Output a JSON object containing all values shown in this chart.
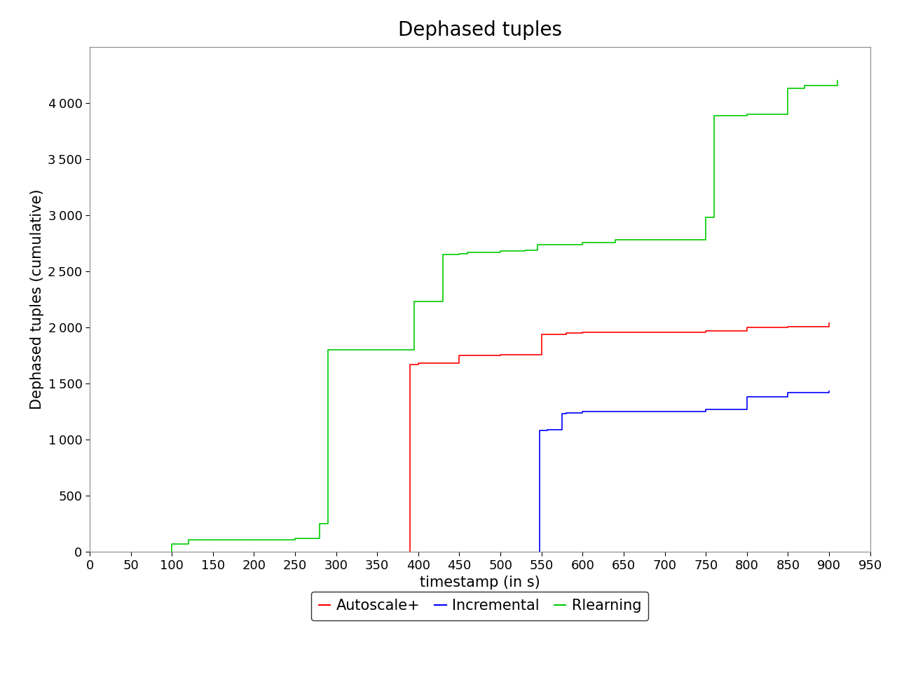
{
  "title": "Dephased tuples",
  "xlabel": "timestamp (in s)",
  "ylabel": "Dephased tuples (cumulative)",
  "xlim": [
    0,
    950
  ],
  "ylim": [
    0,
    4500
  ],
  "xticks": [
    0,
    50,
    100,
    150,
    200,
    250,
    300,
    350,
    400,
    450,
    500,
    550,
    600,
    650,
    700,
    750,
    800,
    850,
    900,
    950
  ],
  "yticks": [
    0,
    500,
    1000,
    1500,
    2000,
    2500,
    3000,
    3500,
    4000
  ],
  "series": [
    {
      "name": "Autoscale+",
      "color": "#ff0000",
      "x": [
        390,
        390,
        400,
        400,
        450,
        450,
        500,
        500,
        550,
        550,
        580,
        580,
        600,
        600,
        750,
        750,
        800,
        800,
        850,
        850,
        900,
        900
      ],
      "y": [
        0,
        1670,
        1670,
        1680,
        1680,
        1750,
        1750,
        1760,
        1760,
        1940,
        1940,
        1950,
        1950,
        1960,
        1960,
        1970,
        1970,
        2000,
        2000,
        2010,
        2010,
        2040
      ]
    },
    {
      "name": "Incremental",
      "color": "#0000ff",
      "x": [
        548,
        548,
        557,
        557,
        575,
        575,
        580,
        580,
        600,
        600,
        750,
        750,
        800,
        800,
        850,
        850,
        900,
        900
      ],
      "y": [
        0,
        1080,
        1080,
        1090,
        1090,
        1230,
        1230,
        1240,
        1240,
        1250,
        1250,
        1270,
        1270,
        1380,
        1380,
        1420,
        1420,
        1430
      ]
    },
    {
      "name": "Rlearning",
      "color": "#00cc00",
      "x": [
        100,
        100,
        120,
        120,
        250,
        250,
        280,
        280,
        290,
        290,
        395,
        395,
        430,
        430,
        450,
        450,
        460,
        460,
        500,
        500,
        530,
        530,
        545,
        545,
        600,
        600,
        640,
        640,
        750,
        750,
        760,
        760,
        800,
        800,
        850,
        850,
        870,
        870,
        910,
        910
      ],
      "y": [
        0,
        70,
        70,
        110,
        110,
        120,
        120,
        250,
        250,
        1800,
        1800,
        2230,
        2230,
        2650,
        2650,
        2660,
        2660,
        2670,
        2670,
        2680,
        2680,
        2690,
        2690,
        2740,
        2740,
        2760,
        2760,
        2780,
        2780,
        2980,
        2980,
        3890,
        3890,
        3900,
        3900,
        4130,
        4130,
        4160,
        4160,
        4200
      ]
    }
  ],
  "legend_entries": [
    "Autoscale+",
    "Incremental",
    "Rlearning"
  ],
  "legend_colors": [
    "#ff0000",
    "#0000ff",
    "#00cc00"
  ],
  "background_color": "#ffffff",
  "title_fontsize": 20,
  "label_fontsize": 15,
  "tick_fontsize": 13,
  "legend_fontsize": 15
}
